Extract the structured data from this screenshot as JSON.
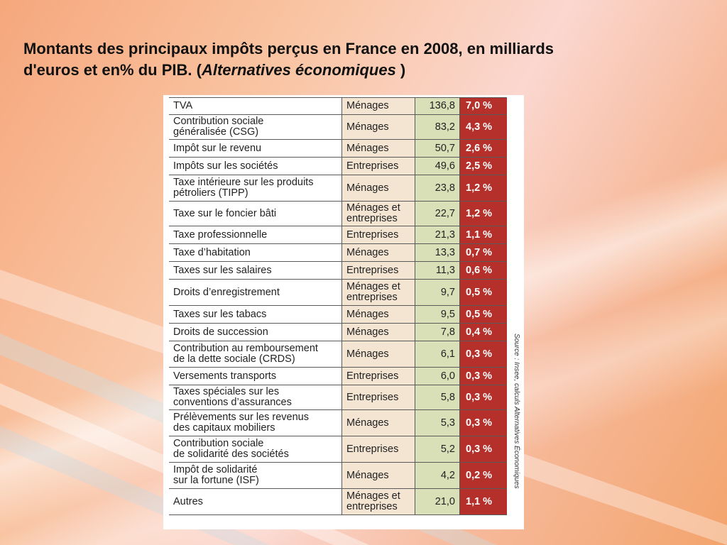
{
  "title": {
    "line1": "Montants des principaux impôts perçus en France en 2008, en milliards",
    "line2_prefix": "d'euros et en% du PIB. (",
    "line2_italic": "Alternatives économiques",
    "line2_suffix": " )"
  },
  "source_note": "Source : Insee, calculs Alternatives Économiques",
  "rows": [
    {
      "name": "TVA",
      "who": "Ménages",
      "amount": "136,8",
      "pct": "7,0 %"
    },
    {
      "name": "Contribution sociale\ngénéralisée (CSG)",
      "who": "Ménages",
      "amount": "83,2",
      "pct": "4,3 %"
    },
    {
      "name": "Impôt sur le revenu",
      "who": "Ménages",
      "amount": "50,7",
      "pct": "2,6 %"
    },
    {
      "name": "Impôts sur les sociétés",
      "who": "Entreprises",
      "amount": "49,6",
      "pct": "2,5 %"
    },
    {
      "name": "Taxe intérieure sur les produits\npétroliers (TIPP)",
      "who": "Ménages",
      "amount": "23,8",
      "pct": "1,2 %"
    },
    {
      "name": "Taxe sur le foncier bâti",
      "who": "Ménages et\nentreprises",
      "amount": "22,7",
      "pct": "1,2 %"
    },
    {
      "name": "Taxe professionnelle",
      "who": "Entreprises",
      "amount": "21,3",
      "pct": "1,1 %"
    },
    {
      "name": "Taxe d’habitation",
      "who": "Ménages",
      "amount": "13,3",
      "pct": "0,7 %"
    },
    {
      "name": "Taxes sur les salaires",
      "who": "Entreprises",
      "amount": "11,3",
      "pct": "0,6 %"
    },
    {
      "name": "Droits d’enregistrement",
      "who": "Ménages et\nentreprises",
      "amount": "9,7",
      "pct": "0,5 %"
    },
    {
      "name": "Taxes sur les tabacs",
      "who": "Ménages",
      "amount": "9,5",
      "pct": "0,5 %"
    },
    {
      "name": "Droits de succession",
      "who": "Ménages",
      "amount": "7,8",
      "pct": "0,4 %"
    },
    {
      "name": "Contribution au remboursement\nde la dette sociale (CRDS)",
      "who": "Ménages",
      "amount": "6,1",
      "pct": "0,3 %"
    },
    {
      "name": "Versements transports",
      "who": "Entreprises",
      "amount": "6,0",
      "pct": "0,3 %"
    },
    {
      "name": "Taxes spéciales sur les\nconventions d’assurances",
      "who": "Entreprises",
      "amount": "5,8",
      "pct": "0,3 %"
    },
    {
      "name": "Prélèvements sur les revenus\ndes capitaux mobiliers",
      "who": "Ménages",
      "amount": "5,3",
      "pct": "0,3 %"
    },
    {
      "name": "Contribution sociale\nde solidarité des sociétés",
      "who": "Entreprises",
      "amount": "5,2",
      "pct": "0,3 %"
    },
    {
      "name": "Impôt de solidarité\nsur la fortune (ISF)",
      "who": "Ménages",
      "amount": "4,2",
      "pct": "0,2 %"
    },
    {
      "name": "Autres",
      "who": "Ménages et\nentreprises",
      "amount": "21,0",
      "pct": "1,1 %"
    }
  ]
}
